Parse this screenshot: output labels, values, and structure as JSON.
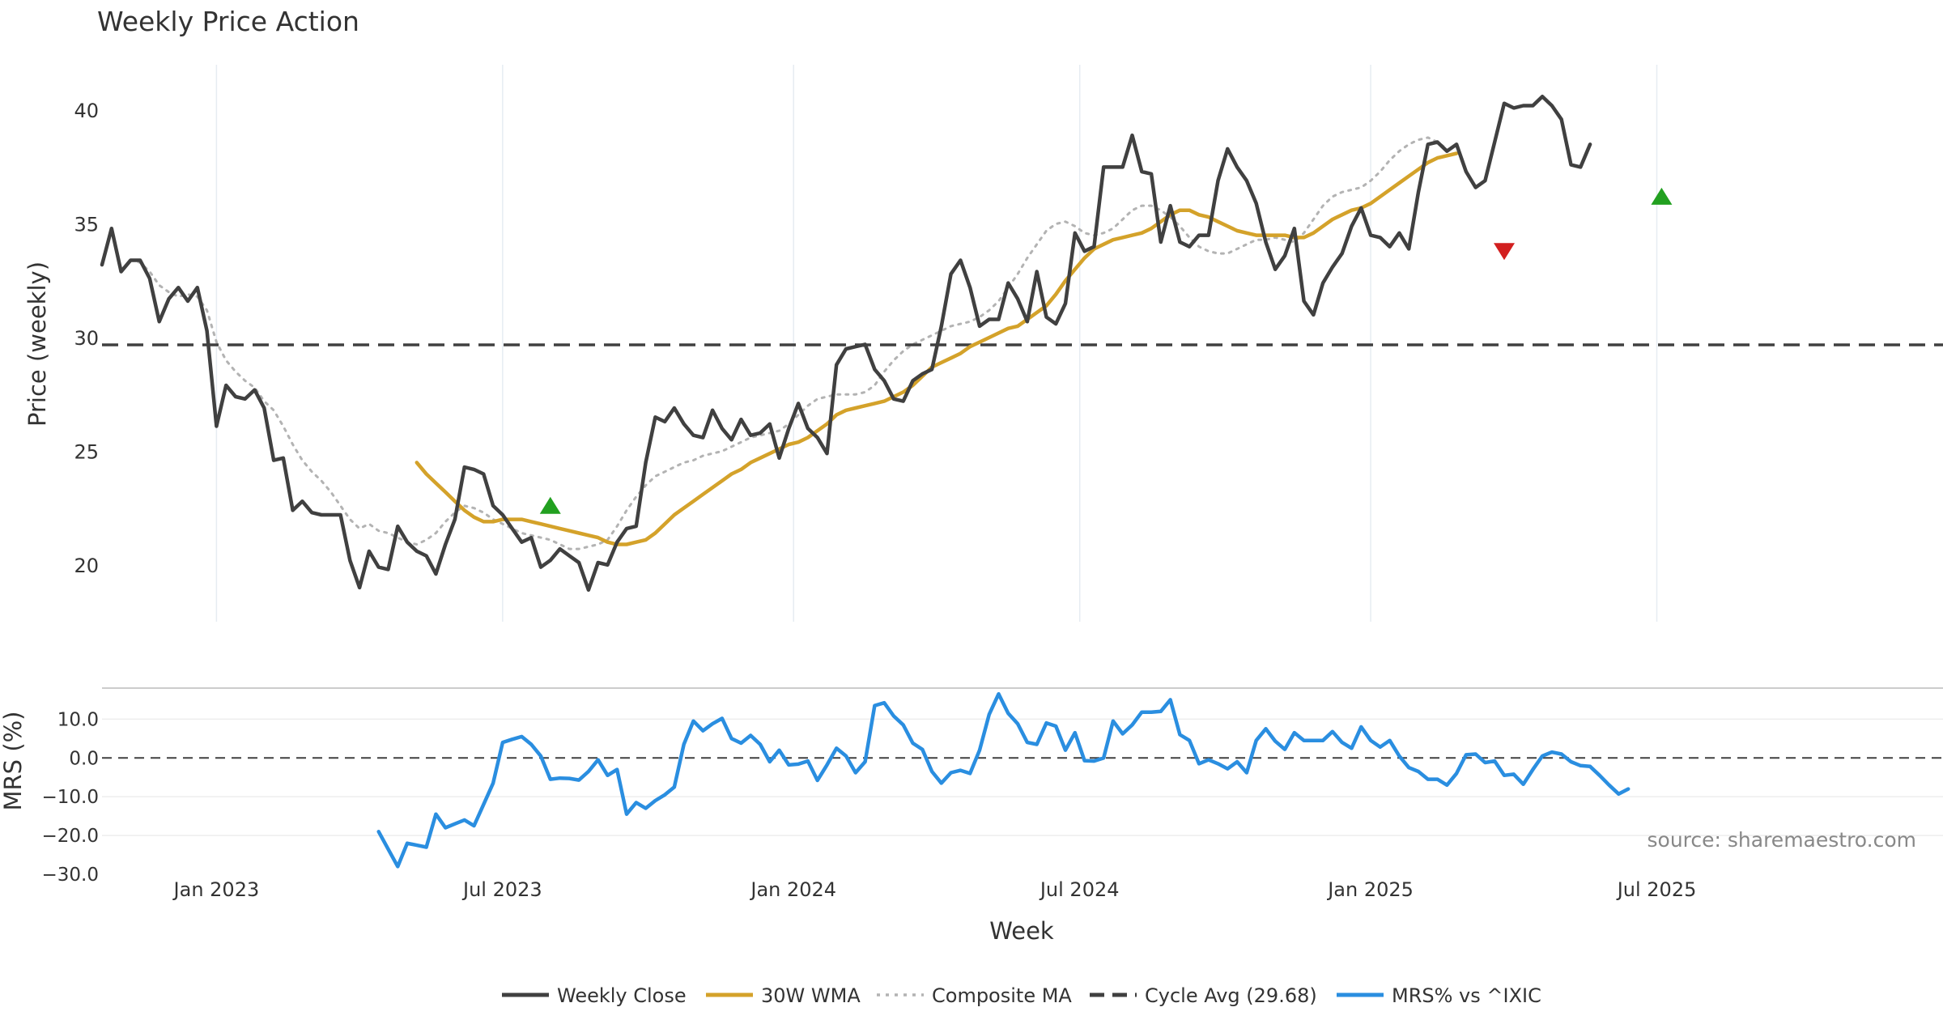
{
  "chart_data": [
    {
      "type": "line",
      "title": "Weekly Price Action",
      "xlabel": "Week",
      "ylabel": "Price (weekly)",
      "xlim": [
        0,
        193
      ],
      "ylim": [
        17.5,
        42
      ],
      "yticks": [
        20,
        25,
        30,
        35,
        40
      ],
      "x_ticks": [
        {
          "label": "Jan 2023",
          "x": 12
        },
        {
          "label": "Jul 2023",
          "x": 42
        },
        {
          "label": "Jan 2024",
          "x": 72.5
        },
        {
          "label": "Jul 2024",
          "x": 102.5
        },
        {
          "label": "Jan 2025",
          "x": 133
        },
        {
          "label": "Jul 2025",
          "x": 163
        }
      ],
      "grid": true,
      "cycle_avg": 29.68,
      "series": [
        {
          "name": "Weekly Close",
          "color": "#404040",
          "style": "solid",
          "x0": 0,
          "values": [
            33.2,
            34.8,
            32.9,
            33.4,
            33.4,
            32.6,
            30.7,
            31.7,
            32.2,
            31.6,
            32.2,
            30.3,
            26.1,
            27.9,
            27.4,
            27.3,
            27.7,
            26.9,
            24.6,
            24.7,
            22.4,
            22.8,
            22.3,
            22.2,
            22.2,
            22.2,
            20.2,
            19.0,
            20.6,
            19.9,
            19.8,
            21.7,
            21.0,
            20.6,
            20.4,
            19.6,
            20.9,
            22.0,
            24.3,
            24.2,
            24.0,
            22.6,
            22.2,
            21.6,
            21.0,
            21.2,
            19.9,
            20.2,
            20.7,
            20.4,
            20.1,
            18.9,
            20.1,
            20.0,
            21.0,
            21.6,
            21.7,
            24.5,
            26.5,
            26.3,
            26.9,
            26.2,
            25.7,
            25.6,
            26.8,
            26.0,
            25.5,
            26.4,
            25.7,
            25.8,
            26.2,
            24.7,
            26.0,
            27.1,
            26.0,
            25.6,
            24.9,
            28.8,
            29.5,
            29.6,
            29.7,
            28.6,
            28.1,
            27.3,
            27.2,
            28.1,
            28.4,
            28.6,
            30.5,
            32.8,
            33.4,
            32.2,
            30.5,
            30.8,
            30.8,
            32.4,
            31.7,
            30.7,
            32.9,
            30.9,
            30.6,
            31.5,
            34.6,
            33.8,
            34.0,
            37.5,
            37.5,
            37.5,
            38.9,
            37.3,
            37.2,
            34.2,
            35.8,
            34.2,
            34.0,
            34.5,
            34.5,
            36.9,
            38.3,
            37.5,
            36.9,
            35.9,
            34.2,
            33.0,
            33.6,
            34.8,
            31.6,
            31.0,
            32.4,
            33.1,
            33.7,
            34.9,
            35.7,
            34.5,
            34.4,
            34.0,
            34.6,
            33.9,
            36.4,
            38.5,
            38.6,
            38.2,
            38.5,
            37.3,
            36.6,
            36.9,
            38.6,
            40.3,
            40.1,
            40.2,
            40.2,
            40.6,
            40.2,
            39.6,
            37.6,
            37.5,
            38.5
          ]
        },
        {
          "name": "30W WMA",
          "color": "#d4a22a",
          "style": "solid",
          "x0": 33,
          "values": [
            24.5,
            24.0,
            23.6,
            23.2,
            22.8,
            22.4,
            22.1,
            21.9,
            21.9,
            22.0,
            22.0,
            22.0,
            21.9,
            21.8,
            21.7,
            21.6,
            21.5,
            21.4,
            21.3,
            21.2,
            21.0,
            20.9,
            20.9,
            21.0,
            21.1,
            21.4,
            21.8,
            22.2,
            22.5,
            22.8,
            23.1,
            23.4,
            23.7,
            24.0,
            24.2,
            24.5,
            24.7,
            24.9,
            25.1,
            25.3,
            25.4,
            25.6,
            25.9,
            26.2,
            26.6,
            26.8,
            26.9,
            27.0,
            27.1,
            27.2,
            27.4,
            27.6,
            27.9,
            28.3,
            28.7,
            28.9,
            29.1,
            29.3,
            29.6,
            29.8,
            30.0,
            30.2,
            30.4,
            30.5,
            30.8,
            31.1,
            31.4,
            31.9,
            32.5,
            33.0,
            33.5,
            33.9,
            34.1,
            34.3,
            34.4,
            34.5,
            34.6,
            34.8,
            35.1,
            35.4,
            35.6,
            35.6,
            35.4,
            35.3,
            35.1,
            34.9,
            34.7,
            34.6,
            34.5,
            34.5,
            34.5,
            34.5,
            34.4,
            34.4,
            34.6,
            34.9,
            35.2,
            35.4,
            35.6,
            35.7,
            35.9,
            36.2,
            36.5,
            36.8,
            37.1,
            37.4,
            37.7,
            37.9,
            38.0,
            38.1
          ]
        },
        {
          "name": "Composite MA",
          "color": "#b3b3b3",
          "style": "dotted",
          "x0": 3,
          "values": [
            33.4,
            33.3,
            32.9,
            32.3,
            32.0,
            31.8,
            31.9,
            31.8,
            31.2,
            29.8,
            29.0,
            28.5,
            28.1,
            27.8,
            27.2,
            26.8,
            26.1,
            25.3,
            24.6,
            24.1,
            23.7,
            23.2,
            22.6,
            22.0,
            21.6,
            21.8,
            21.5,
            21.4,
            21.2,
            21.0,
            20.9,
            21.1,
            21.4,
            21.9,
            22.3,
            22.6,
            22.5,
            22.3,
            22.0,
            21.8,
            21.6,
            21.4,
            21.3,
            21.2,
            21.1,
            20.9,
            20.7,
            20.7,
            20.8,
            20.9,
            21.1,
            21.7,
            22.4,
            23.0,
            23.5,
            23.9,
            24.1,
            24.3,
            24.5,
            24.6,
            24.8,
            24.9,
            25.0,
            25.2,
            25.4,
            25.6,
            25.7,
            25.8,
            25.9,
            26.2,
            26.6,
            27.0,
            27.3,
            27.4,
            27.5,
            27.5,
            27.5,
            27.6,
            27.9,
            28.5,
            29.0,
            29.4,
            29.7,
            29.9,
            30.1,
            30.3,
            30.5,
            30.6,
            30.7,
            30.9,
            31.2,
            31.6,
            32.2,
            32.8,
            33.5,
            34.1,
            34.7,
            35.0,
            35.1,
            34.9,
            34.6,
            34.5,
            34.6,
            34.8,
            35.2,
            35.6,
            35.8,
            35.8,
            35.6,
            35.3,
            34.9,
            34.4,
            34.0,
            33.8,
            33.7,
            33.7,
            33.9,
            34.1,
            34.3,
            34.3,
            34.4,
            34.3,
            34.2,
            34.6,
            35.2,
            35.8,
            36.2,
            36.4,
            36.5,
            36.6,
            36.9,
            37.3,
            37.8,
            38.2,
            38.5,
            38.7,
            38.8,
            38.6,
            38.3
          ]
        },
        {
          "name": "Cycle Avg (29.68)",
          "color": "#404040",
          "style": "dashed",
          "value": 29.68
        }
      ],
      "markers": [
        {
          "type": "buy",
          "x": 47,
          "y": 22.6,
          "color": "#22a020"
        },
        {
          "type": "sell",
          "x": 147,
          "y": 33.8,
          "color": "#d21f1f"
        },
        {
          "type": "buy",
          "x": 163.5,
          "y": 36.2,
          "color": "#22a020"
        }
      ],
      "annotation": "source: sharemaestro.com"
    },
    {
      "type": "line",
      "ylabel": "MRS (%)",
      "ylim": [
        -30,
        18
      ],
      "yticks": [
        -30.0,
        -20.0,
        -10.0,
        0.0,
        10.0
      ],
      "ytick_labels": [
        "−30.0",
        "−20.0",
        "−10.0",
        "0.0",
        "10.0"
      ],
      "zero_line": true,
      "series": [
        {
          "name": "MRS% vs ^IXIC",
          "color": "#2a8ee0",
          "style": "solid",
          "x0": 29,
          "values": [
            -19,
            -23.5,
            -28,
            -22,
            -22.5,
            -23,
            -14.5,
            -18,
            -17,
            -16,
            -17.5,
            -12,
            -6.5,
            4,
            4.8,
            5.5,
            3.5,
            0.5,
            -5.5,
            -5.2,
            -5.3,
            -5.7,
            -3.5,
            -0.5,
            -4.5,
            -3,
            -14.5,
            -11.5,
            -13,
            -11,
            -9.5,
            -7.5,
            3.5,
            9.5,
            7,
            8.8,
            10.2,
            5,
            3.8,
            5.8,
            3.5,
            -1,
            2,
            -1.8,
            -1.6,
            -0.8,
            -5.8,
            -1.8,
            2.5,
            0.5,
            -3.8,
            -1,
            13.5,
            14.2,
            10.8,
            8.5,
            3.8,
            2.2,
            -3.5,
            -6.5,
            -3.8,
            -3.2,
            -4,
            2,
            11.2,
            16.5,
            11.5,
            8.8,
            4,
            3.5,
            9,
            8.2,
            2,
            6.5,
            -0.7,
            -0.8,
            0,
            9.5,
            6.2,
            8.5,
            11.8,
            11.8,
            12,
            15,
            6,
            4.5,
            -1.5,
            -0.5,
            -1.5,
            -2.8,
            -1,
            -3.8,
            4.5,
            7.5,
            4.3,
            2.2,
            6.5,
            4.5,
            4.5,
            4.5,
            6.8,
            4,
            2.5,
            8,
            4.5,
            2.8,
            4.5,
            0.5,
            -2.5,
            -3.5,
            -5.5,
            -5.5,
            -7,
            -4,
            0.8,
            1,
            -1.2,
            -0.8,
            -4.5,
            -4.2,
            -6.8,
            -3,
            0.5,
            1.5,
            1,
            -1,
            -2,
            -2.2,
            -4.5,
            -7,
            -9.3,
            -8
          ]
        }
      ]
    }
  ],
  "legend": {
    "position": "bottom",
    "items": [
      {
        "label": "Weekly Close",
        "color": "#404040",
        "style": "solid"
      },
      {
        "label": "30W WMA",
        "color": "#d4a22a",
        "style": "solid"
      },
      {
        "label": "Composite MA",
        "color": "#b3b3b3",
        "style": "dotted"
      },
      {
        "label": "Cycle Avg (29.68)",
        "color": "#404040",
        "style": "dashed"
      },
      {
        "label": "MRS% vs ^IXIC",
        "color": "#2a8ee0",
        "style": "solid"
      }
    ]
  }
}
